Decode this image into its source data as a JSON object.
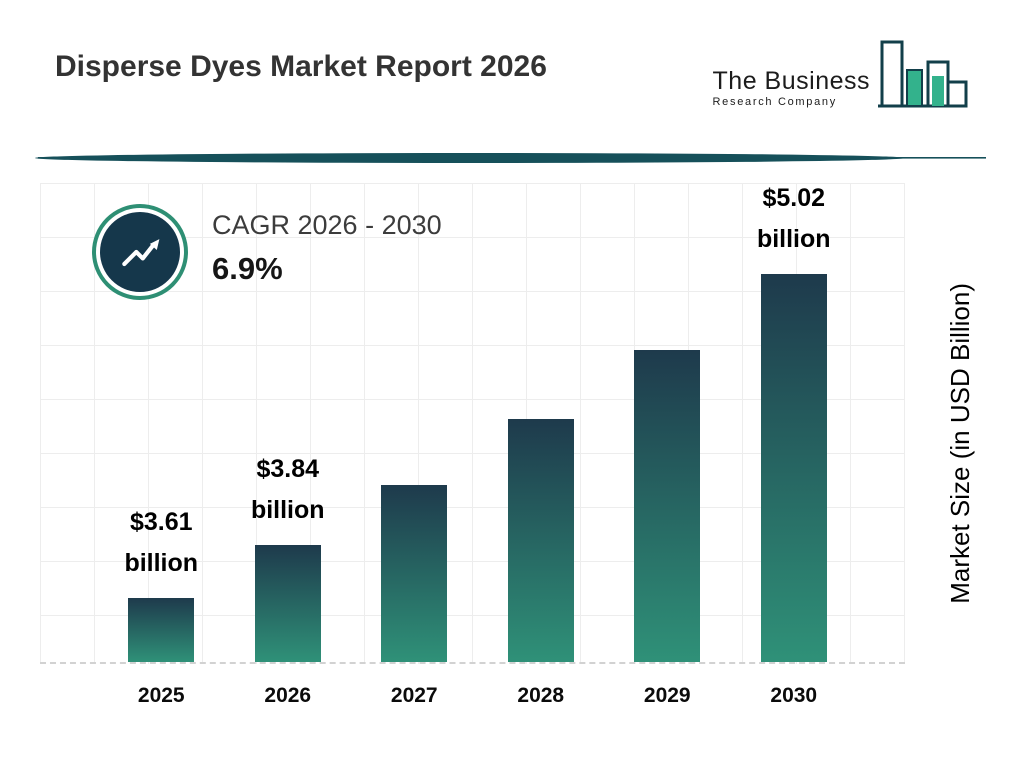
{
  "header": {
    "title": "Disperse Dyes Market Report 2026",
    "logo": {
      "line1": "The Business",
      "line2": "Research Company"
    }
  },
  "cagr": {
    "label": "CAGR 2026 - 2030",
    "value": "6.9%"
  },
  "chart_data": {
    "type": "bar",
    "title": "Disperse Dyes Market Report 2026",
    "categories": [
      "2025",
      "2026",
      "2027",
      "2028",
      "2029",
      "2030"
    ],
    "values": [
      3.61,
      3.84,
      4.1,
      4.39,
      4.69,
      5.02
    ],
    "value_labels": [
      "$3.61 billion",
      "$3.84 billion",
      "",
      "",
      "",
      "$5.02 billion"
    ],
    "xlabel": "",
    "ylabel": "Market Size (in USD Billion)",
    "units": "USD Billion",
    "grid": true,
    "baseline_style": "dashed",
    "legend": "none",
    "bar_gradient": [
      "#1e3a4c",
      "#2f9178"
    ]
  },
  "colors": {
    "divider": "#16505a",
    "logo_outline": "#123f4a",
    "logo_fill": "#33b28c",
    "badge_ring": "#2e8f74",
    "badge_fill": "#15374b",
    "grid": "#ededed"
  }
}
